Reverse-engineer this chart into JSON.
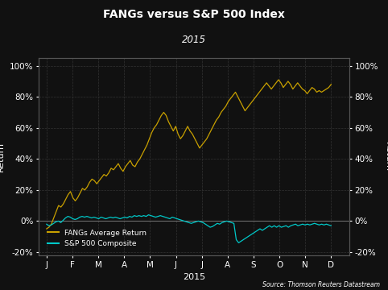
{
  "title": "FANGs versus S&P 500 Index",
  "subtitle": "2015",
  "xlabel": "2015",
  "ylabel_left": "Return",
  "ylabel_right": "Return",
  "source": "Source: Thomson Reuters Datastream",
  "background_color": "#111111",
  "text_color": "#ffffff",
  "grid_color": "#333333",
  "fang_color": "#c8a000",
  "sp500_color": "#00c8c8",
  "ylim": [
    -0.22,
    1.05
  ],
  "yticks": [
    -0.2,
    0.0,
    0.2,
    0.4,
    0.6,
    0.8,
    1.0
  ],
  "month_labels": [
    "J",
    "F",
    "M",
    "A",
    "M",
    "J",
    "J",
    "A",
    "S",
    "O",
    "N",
    "D"
  ],
  "fang_data": [
    -0.05,
    -0.04,
    -0.02,
    0.02,
    0.06,
    0.1,
    0.09,
    0.11,
    0.14,
    0.17,
    0.19,
    0.15,
    0.13,
    0.15,
    0.18,
    0.21,
    0.2,
    0.22,
    0.25,
    0.27,
    0.26,
    0.24,
    0.26,
    0.28,
    0.3,
    0.29,
    0.31,
    0.34,
    0.33,
    0.35,
    0.37,
    0.34,
    0.32,
    0.35,
    0.37,
    0.39,
    0.36,
    0.35,
    0.38,
    0.4,
    0.43,
    0.46,
    0.49,
    0.53,
    0.57,
    0.6,
    0.62,
    0.65,
    0.68,
    0.7,
    0.68,
    0.64,
    0.61,
    0.58,
    0.61,
    0.56,
    0.53,
    0.55,
    0.58,
    0.61,
    0.58,
    0.56,
    0.53,
    0.5,
    0.47,
    0.49,
    0.51,
    0.53,
    0.56,
    0.59,
    0.62,
    0.65,
    0.67,
    0.7,
    0.72,
    0.74,
    0.77,
    0.79,
    0.81,
    0.83,
    0.8,
    0.77,
    0.74,
    0.71,
    0.73,
    0.75,
    0.77,
    0.79,
    0.81,
    0.83,
    0.85,
    0.87,
    0.89,
    0.87,
    0.85,
    0.87,
    0.89,
    0.91,
    0.89,
    0.86,
    0.88,
    0.9,
    0.88,
    0.85,
    0.87,
    0.89,
    0.87,
    0.85,
    0.84,
    0.82,
    0.84,
    0.86,
    0.85,
    0.83,
    0.84,
    0.83,
    0.84,
    0.85,
    0.86,
    0.88
  ],
  "sp500_data": [
    -0.02,
    -0.03,
    -0.025,
    -0.015,
    -0.005,
    0.0,
    -0.01,
    0.005,
    0.02,
    0.03,
    0.025,
    0.015,
    0.01,
    0.015,
    0.025,
    0.03,
    0.025,
    0.03,
    0.025,
    0.02,
    0.025,
    0.02,
    0.015,
    0.025,
    0.02,
    0.015,
    0.02,
    0.025,
    0.02,
    0.025,
    0.02,
    0.015,
    0.02,
    0.025,
    0.02,
    0.03,
    0.025,
    0.035,
    0.03,
    0.035,
    0.03,
    0.035,
    0.03,
    0.04,
    0.035,
    0.03,
    0.025,
    0.03,
    0.035,
    0.03,
    0.025,
    0.02,
    0.015,
    0.025,
    0.02,
    0.015,
    0.01,
    0.005,
    0.0,
    -0.005,
    -0.01,
    -0.015,
    -0.01,
    -0.005,
    0.0,
    -0.005,
    -0.01,
    -0.02,
    -0.03,
    -0.04,
    -0.035,
    -0.025,
    -0.015,
    -0.02,
    -0.01,
    -0.005,
    0.0,
    -0.005,
    -0.01,
    -0.015,
    -0.12,
    -0.14,
    -0.13,
    -0.12,
    -0.11,
    -0.1,
    -0.09,
    -0.08,
    -0.07,
    -0.06,
    -0.05,
    -0.06,
    -0.05,
    -0.04,
    -0.03,
    -0.04,
    -0.03,
    -0.04,
    -0.03,
    -0.04,
    -0.035,
    -0.03,
    -0.04,
    -0.03,
    -0.025,
    -0.02,
    -0.03,
    -0.025,
    -0.02,
    -0.025,
    -0.02,
    -0.025,
    -0.02,
    -0.015,
    -0.02,
    -0.025,
    -0.02,
    -0.025,
    -0.02,
    -0.025,
    -0.03
  ],
  "legend_fang": "FANGs Average Return",
  "legend_sp500": "S&P 500 Composite"
}
